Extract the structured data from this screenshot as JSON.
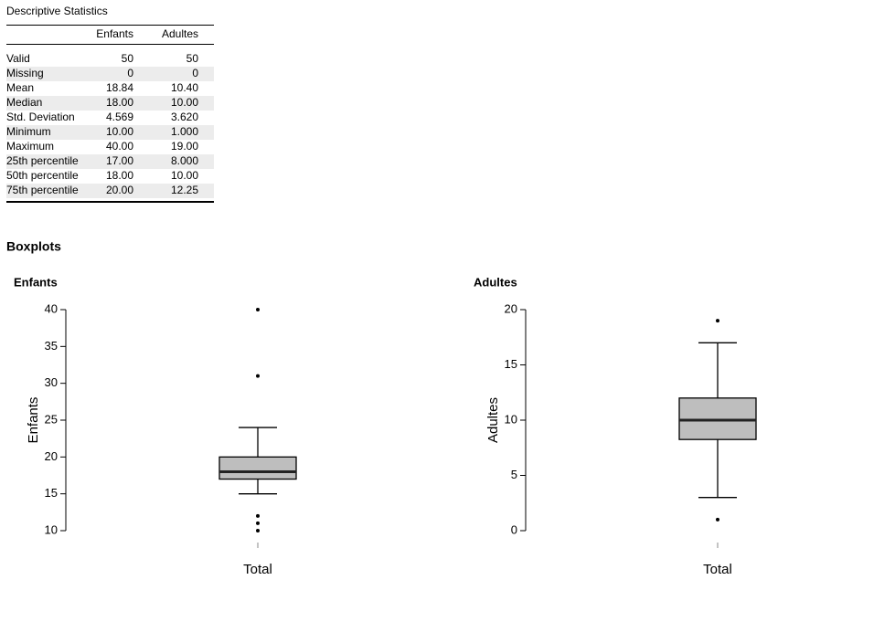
{
  "title": "Descriptive Statistics",
  "table": {
    "columns": [
      "Enfants",
      "Adultes"
    ],
    "rows": [
      [
        "Valid",
        "50",
        "50"
      ],
      [
        "Missing",
        "0",
        "0"
      ],
      [
        "Mean",
        "18.84",
        "10.40"
      ],
      [
        "Median",
        "18.00",
        "10.00"
      ],
      [
        "Std. Deviation",
        "4.569",
        "3.620"
      ],
      [
        "Minimum",
        "10.00",
        "1.000"
      ],
      [
        "Maximum",
        "40.00",
        "19.00"
      ],
      [
        "25th percentile",
        "17.00",
        "8.000"
      ],
      [
        "50th percentile",
        "18.00",
        "10.00"
      ],
      [
        "75th percentile",
        "20.00",
        "12.25"
      ]
    ]
  },
  "section_title": "Boxplots",
  "chart_data": [
    {
      "type": "box",
      "title": "Enfants",
      "ylabel": "Enfants",
      "category": "Total",
      "color": "#bebebe",
      "whisker_low": 15,
      "q1": 17,
      "median": 18,
      "q3": 20,
      "whisker_high": 24,
      "outliers": [
        40,
        31,
        12,
        11,
        10
      ],
      "ylim": [
        10,
        40
      ],
      "yticks": [
        10,
        15,
        20,
        25,
        30,
        35,
        40
      ]
    },
    {
      "type": "box",
      "title": "Adultes",
      "ylabel": "Adultes",
      "category": "Total",
      "color": "#bebebe",
      "whisker_low": 3,
      "q1": 8.25,
      "median": 10,
      "q3": 12,
      "whisker_high": 17,
      "outliers": [
        19,
        1
      ],
      "ylim": [
        0,
        20
      ],
      "yticks": [
        0,
        5,
        10,
        15,
        20
      ]
    }
  ]
}
